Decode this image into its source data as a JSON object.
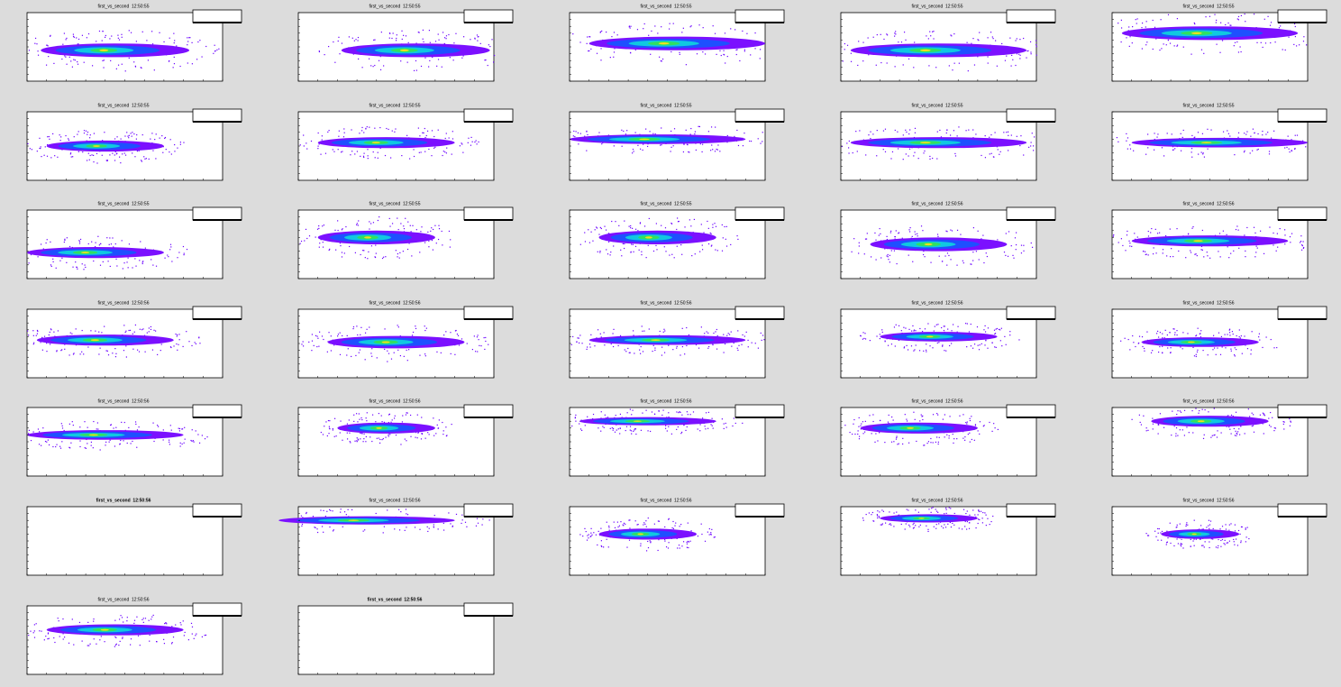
{
  "pads": [
    {
      "title": "first_vs_second  12:50:55"
    },
    {
      "title": "first_vs_second  12:50:55"
    },
    {
      "title": "first_vs_second  12:50:55"
    },
    {
      "title": "first_vs_second  12:50:55"
    },
    {
      "title": "first_vs_second  12:50:55"
    },
    {
      "title": "first_vs_second  12:50:55"
    },
    {
      "title": "first_vs_second  12:50:55"
    },
    {
      "title": "first_vs_second  12:50:55"
    },
    {
      "title": "first_vs_second  12:50:55"
    },
    {
      "title": "first_vs_second  12:50:55"
    },
    {
      "title": "first_vs_second  12:50:55"
    },
    {
      "title": "first_vs_second  12:50:55"
    },
    {
      "title": "first_vs_second  12:50:55"
    },
    {
      "title": "first_vs_second  12:50:56"
    },
    {
      "title": "first_vs_second  12:50:56"
    },
    {
      "title": "first_vs_second  12:50:56"
    },
    {
      "title": "first_vs_second  12:50:56"
    },
    {
      "title": "first_vs_second  12:50:56"
    },
    {
      "title": "first_vs_second  12:50:56"
    },
    {
      "title": "first_vs_second  12:50:56"
    },
    {
      "title": "first_vs_second  12:50:56"
    },
    {
      "title": "first_vs_second  12:50:56"
    },
    {
      "title": "first_vs_second  12:50:56"
    },
    {
      "title": "first_vs_second  12:50:56"
    },
    {
      "title": "first_vs_second  12:50:56"
    },
    {
      "title": "first_vs_second  12:50:56"
    },
    {
      "title": "first_vs_second  12:50:56"
    },
    {
      "title": "first_vs_second  12:50:56"
    },
    {
      "title": "first_vs_second  12:50:56"
    },
    {
      "title": "first_vs_second  12:50:56"
    },
    {
      "title": "first_vs_second  12:50:56"
    },
    {
      "title": "first_vs_second  12:50:56"
    }
  ]
}
